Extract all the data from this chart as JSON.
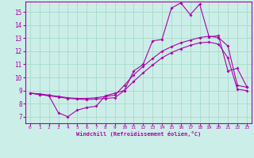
{
  "xlabel": "Windchill (Refroidissement éolien,°C)",
  "background_color": "#cceee8",
  "grid_color": "#aaddcc",
  "line_color": "#aa00aa",
  "xlim": [
    -0.5,
    23.5
  ],
  "ylim": [
    6.5,
    15.8
  ],
  "yticks": [
    7,
    8,
    9,
    10,
    11,
    12,
    13,
    14,
    15
  ],
  "xticks": [
    0,
    1,
    2,
    3,
    4,
    5,
    6,
    7,
    8,
    9,
    10,
    11,
    12,
    13,
    14,
    15,
    16,
    17,
    18,
    19,
    20,
    21,
    22,
    23
  ],
  "series1_x": [
    0,
    1,
    2,
    3,
    4,
    5,
    6,
    7,
    8,
    9,
    10,
    11,
    12,
    13,
    14,
    15,
    16,
    17,
    18,
    19,
    20,
    21,
    22,
    23
  ],
  "series1_y": [
    8.8,
    8.7,
    8.6,
    7.3,
    7.0,
    7.5,
    7.7,
    7.8,
    8.6,
    8.8,
    9.0,
    10.5,
    11.0,
    12.8,
    12.9,
    15.3,
    15.7,
    14.8,
    15.6,
    13.1,
    13.2,
    10.5,
    10.7,
    9.3
  ],
  "series2_x": [
    0,
    1,
    2,
    3,
    4,
    5,
    6,
    7,
    8,
    9,
    10,
    11,
    12,
    13,
    14,
    15,
    16,
    17,
    18,
    19,
    20,
    21,
    22,
    23
  ],
  "series2_y": [
    8.8,
    8.75,
    8.65,
    8.55,
    8.45,
    8.4,
    8.4,
    8.45,
    8.55,
    8.65,
    9.4,
    10.2,
    10.85,
    11.45,
    12.0,
    12.35,
    12.65,
    12.85,
    13.05,
    13.15,
    13.05,
    12.4,
    9.4,
    9.25
  ],
  "series3_x": [
    0,
    1,
    2,
    3,
    4,
    5,
    6,
    7,
    8,
    9,
    10,
    11,
    12,
    13,
    14,
    15,
    16,
    17,
    18,
    19,
    20,
    21,
    22,
    23
  ],
  "series3_y": [
    8.8,
    8.7,
    8.6,
    8.5,
    8.4,
    8.35,
    8.3,
    8.35,
    8.4,
    8.45,
    9.0,
    9.7,
    10.35,
    10.95,
    11.5,
    11.9,
    12.2,
    12.45,
    12.65,
    12.7,
    12.55,
    11.5,
    9.1,
    9.0
  ]
}
